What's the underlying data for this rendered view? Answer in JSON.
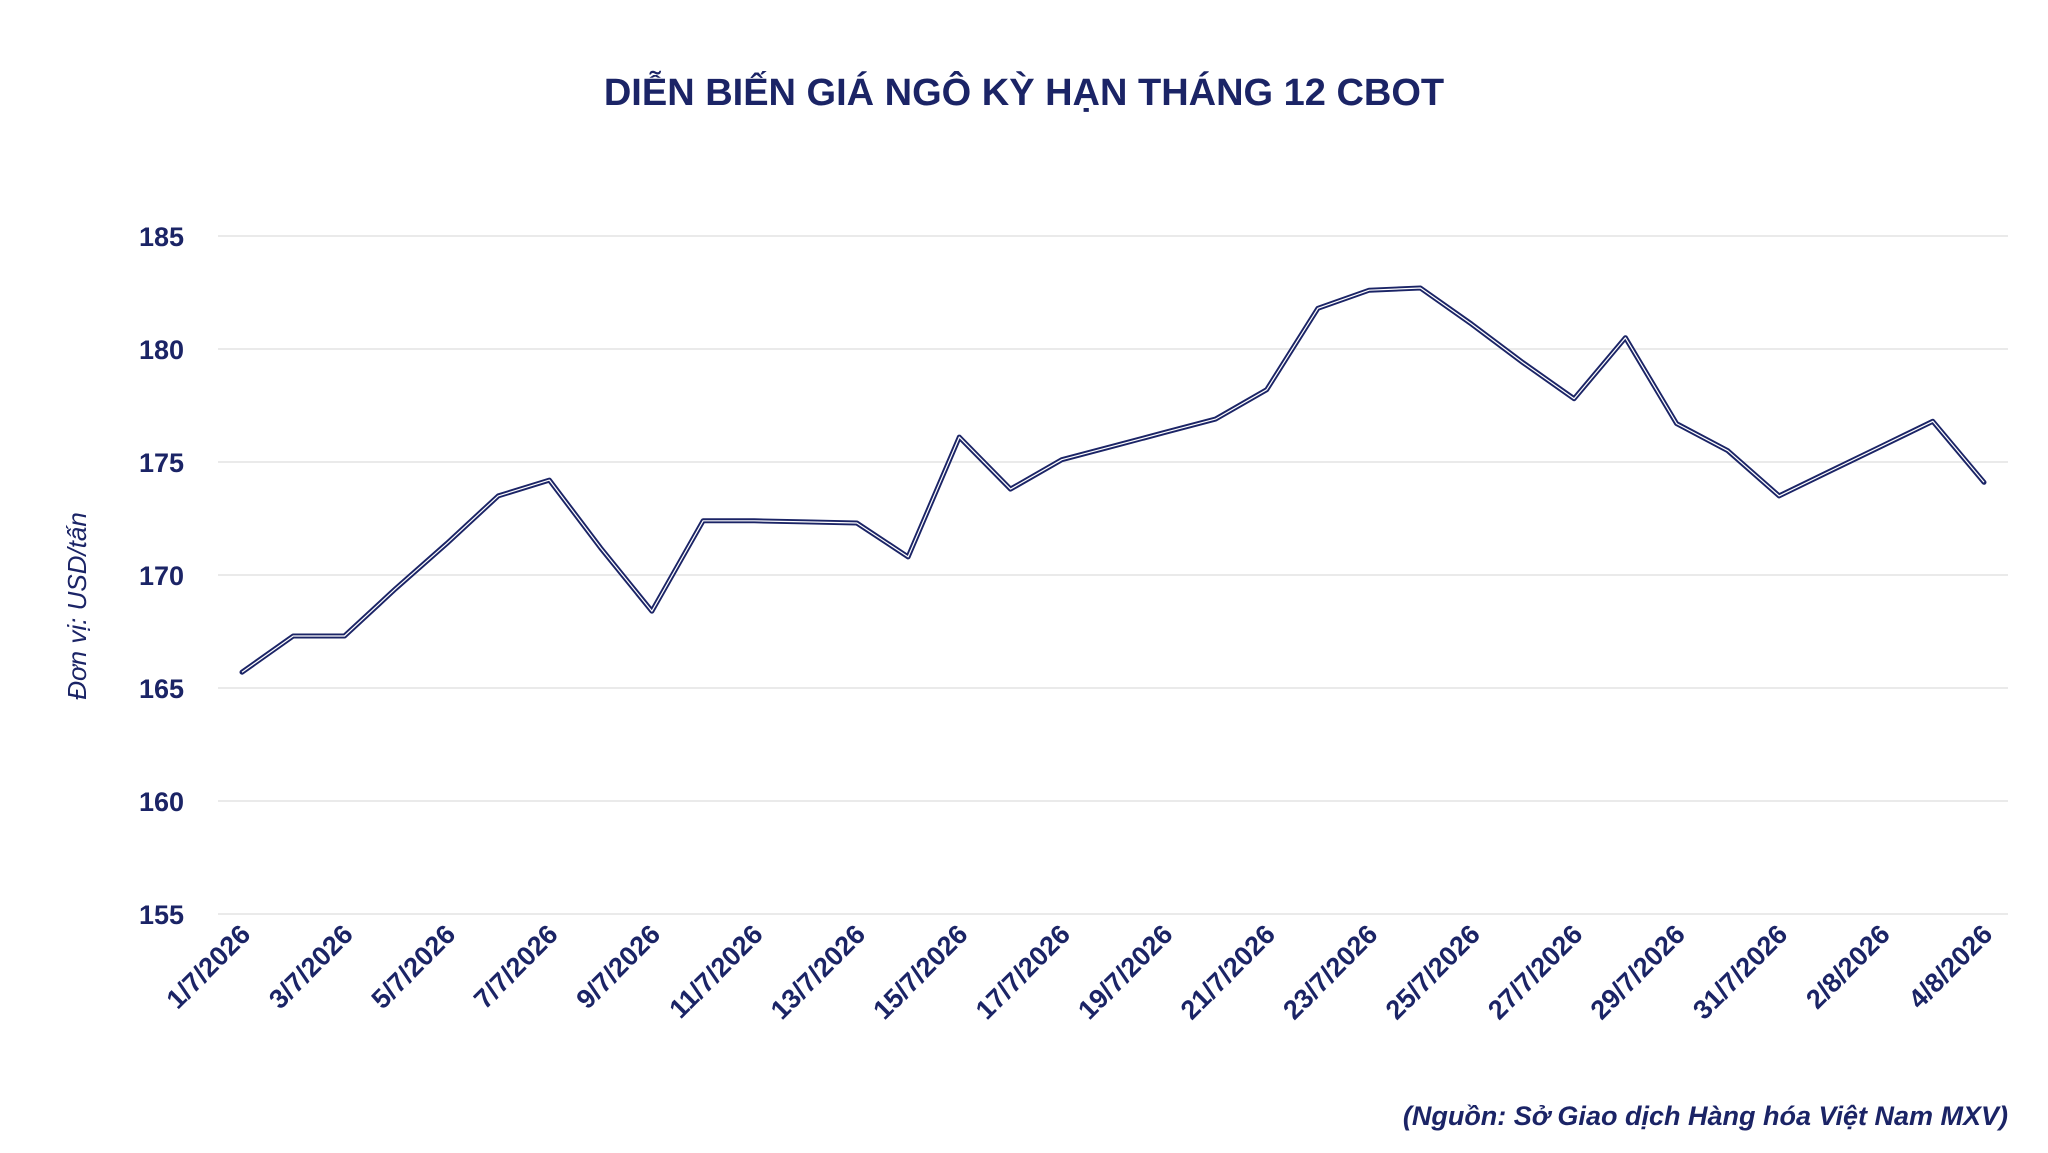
{
  "chart_data": {
    "type": "line",
    "title": "DIỄN BIẾN GIÁ NGÔ KỲ HẠN THÁNG 12 CBOT",
    "ylabel": "Đơn vị: USD/tấn",
    "xlabel": "",
    "ylim": [
      155,
      185
    ],
    "yticks": [
      155,
      160,
      165,
      170,
      175,
      180,
      185
    ],
    "grid": true,
    "source": "(Nguồn: Sở Giao dịch Hàng hóa Việt Nam MXV)",
    "x": [
      "1/7/2026",
      "2/7/2026",
      "3/7/2026",
      "4/7/2026",
      "5/7/2026",
      "6/7/2026",
      "7/7/2026",
      "8/7/2026",
      "9/7/2026",
      "10/7/2026",
      "11/7/2026",
      "12/7/2026",
      "13/7/2026",
      "14/7/2026",
      "15/7/2026",
      "16/7/2026",
      "17/7/2026",
      "18/7/2026",
      "19/7/2026",
      "20/7/2026",
      "21/7/2026",
      "22/7/2026",
      "23/7/2026",
      "24/7/2026",
      "25/7/2026",
      "26/7/2026",
      "27/7/2026",
      "28/7/2026",
      "29/7/2026",
      "30/7/2026",
      "31/7/2026",
      "1/8/2026",
      "2/8/2026",
      "3/8/2026",
      "4/8/2026"
    ],
    "xtick_labels": [
      "1/7/2026",
      "3/7/2026",
      "5/7/2026",
      "7/7/2026",
      "9/7/2026",
      "11/7/2026",
      "13/7/2026",
      "15/7/2026",
      "17/7/2026",
      "19/7/2026",
      "21/7/2026",
      "23/7/2026",
      "25/7/2026",
      "27/7/2026",
      "29/7/2026",
      "31/7/2026",
      "2/8/2026",
      "4/8/2026"
    ],
    "series": [
      {
        "values": [
          165.7,
          167.3,
          167.3,
          169.4,
          171.4,
          173.5,
          174.2,
          171.2,
          168.4,
          172.4,
          172.4,
          172.35,
          172.3,
          170.8,
          176.1,
          173.8,
          175.1,
          175.7,
          176.3,
          176.9,
          178.2,
          181.8,
          182.6,
          182.7,
          181.1,
          179.4,
          177.8,
          180.5,
          176.7,
          175.5,
          173.5,
          174.6,
          175.7,
          176.8,
          174.1
        ]
      }
    ],
    "colors": {
      "line": "#1b2466",
      "text": "#1b2466",
      "grid": "#e3e3e3"
    }
  }
}
